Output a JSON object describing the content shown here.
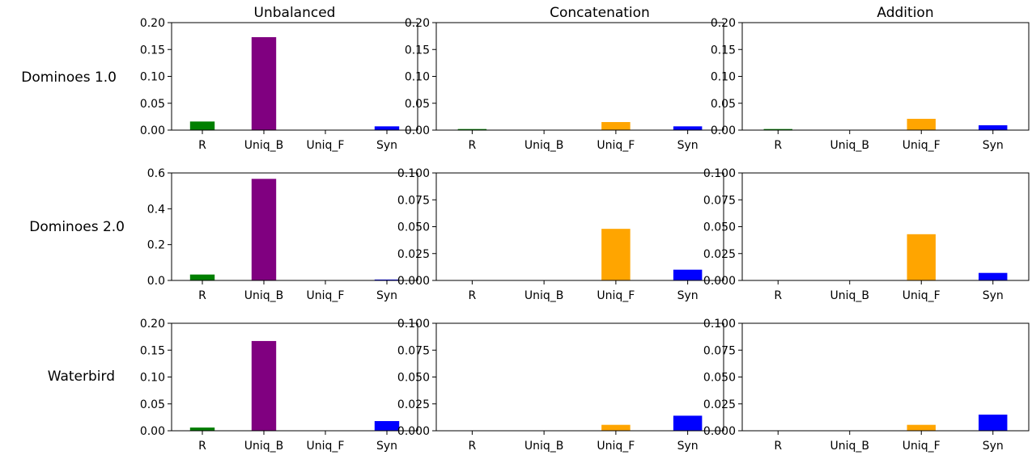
{
  "figure": {
    "col_titles": [
      "Unbalanced",
      "Concatenation",
      "Addition"
    ],
    "row_labels": [
      "Dominoes 1.0",
      "Dominoes 2.0",
      "Waterbird"
    ]
  },
  "colors": {
    "R": "#008000",
    "Uniq_B": "#800080",
    "Uniq_F": "#ffa500",
    "Syn": "#0000ff"
  },
  "chart_data": [
    {
      "type": "bar",
      "row": 0,
      "col": 0,
      "categories": [
        "R",
        "Uniq_B",
        "Uniq_F",
        "Syn"
      ],
      "values": [
        0.016,
        0.173,
        0.0,
        0.007
      ],
      "ylim": [
        0,
        0.2
      ],
      "yticks": [
        "0.00",
        "0.05",
        "0.10",
        "0.15",
        "0.20"
      ],
      "title": "Unbalanced",
      "ylabel": "Dominoes 1.0"
    },
    {
      "type": "bar",
      "row": 0,
      "col": 1,
      "categories": [
        "R",
        "Uniq_B",
        "Uniq_F",
        "Syn"
      ],
      "values": [
        0.002,
        0.0,
        0.015,
        0.007
      ],
      "ylim": [
        0,
        0.2
      ],
      "yticks": [
        "0.00",
        "0.05",
        "0.10",
        "0.15",
        "0.20"
      ],
      "title": "Concatenation"
    },
    {
      "type": "bar",
      "row": 0,
      "col": 2,
      "categories": [
        "R",
        "Uniq_B",
        "Uniq_F",
        "Syn"
      ],
      "values": [
        0.002,
        0.0,
        0.021,
        0.009
      ],
      "ylim": [
        0,
        0.2
      ],
      "yticks": [
        "0.00",
        "0.05",
        "0.10",
        "0.15",
        "0.20"
      ],
      "title": "Addition"
    },
    {
      "type": "bar",
      "row": 1,
      "col": 0,
      "categories": [
        "R",
        "Uniq_B",
        "Uniq_F",
        "Syn"
      ],
      "values": [
        0.033,
        0.567,
        0.0,
        0.005
      ],
      "ylim": [
        0,
        0.6
      ],
      "yticks": [
        "0.0",
        "0.2",
        "0.4",
        "0.6"
      ],
      "ylabel": "Dominoes 2.0"
    },
    {
      "type": "bar",
      "row": 1,
      "col": 1,
      "categories": [
        "R",
        "Uniq_B",
        "Uniq_F",
        "Syn"
      ],
      "values": [
        0.0,
        0.0,
        0.048,
        0.01
      ],
      "ylim": [
        0,
        0.1
      ],
      "yticks": [
        "0.000",
        "0.025",
        "0.050",
        "0.075",
        "0.100"
      ]
    },
    {
      "type": "bar",
      "row": 1,
      "col": 2,
      "categories": [
        "R",
        "Uniq_B",
        "Uniq_F",
        "Syn"
      ],
      "values": [
        0.0,
        0.0,
        0.043,
        0.007
      ],
      "ylim": [
        0,
        0.1
      ],
      "yticks": [
        "0.000",
        "0.025",
        "0.050",
        "0.075",
        "0.100"
      ]
    },
    {
      "type": "bar",
      "row": 2,
      "col": 0,
      "categories": [
        "R",
        "Uniq_B",
        "Uniq_F",
        "Syn"
      ],
      "values": [
        0.006,
        0.167,
        0.0,
        0.018
      ],
      "ylim": [
        0,
        0.2
      ],
      "yticks": [
        "0.00",
        "0.05",
        "0.10",
        "0.15",
        "0.20"
      ],
      "ylabel": "Waterbird"
    },
    {
      "type": "bar",
      "row": 2,
      "col": 1,
      "categories": [
        "R",
        "Uniq_B",
        "Uniq_F",
        "Syn"
      ],
      "values": [
        0.0,
        0.0,
        0.0055,
        0.014
      ],
      "ylim": [
        0,
        0.1
      ],
      "yticks": [
        "0.000",
        "0.025",
        "0.050",
        "0.075",
        "0.100"
      ]
    },
    {
      "type": "bar",
      "row": 2,
      "col": 2,
      "categories": [
        "R",
        "Uniq_B",
        "Uniq_F",
        "Syn"
      ],
      "values": [
        0.0,
        0.0,
        0.0055,
        0.015
      ],
      "ylim": [
        0,
        0.1
      ],
      "yticks": [
        "0.000",
        "0.025",
        "0.050",
        "0.075",
        "0.100"
      ]
    }
  ]
}
